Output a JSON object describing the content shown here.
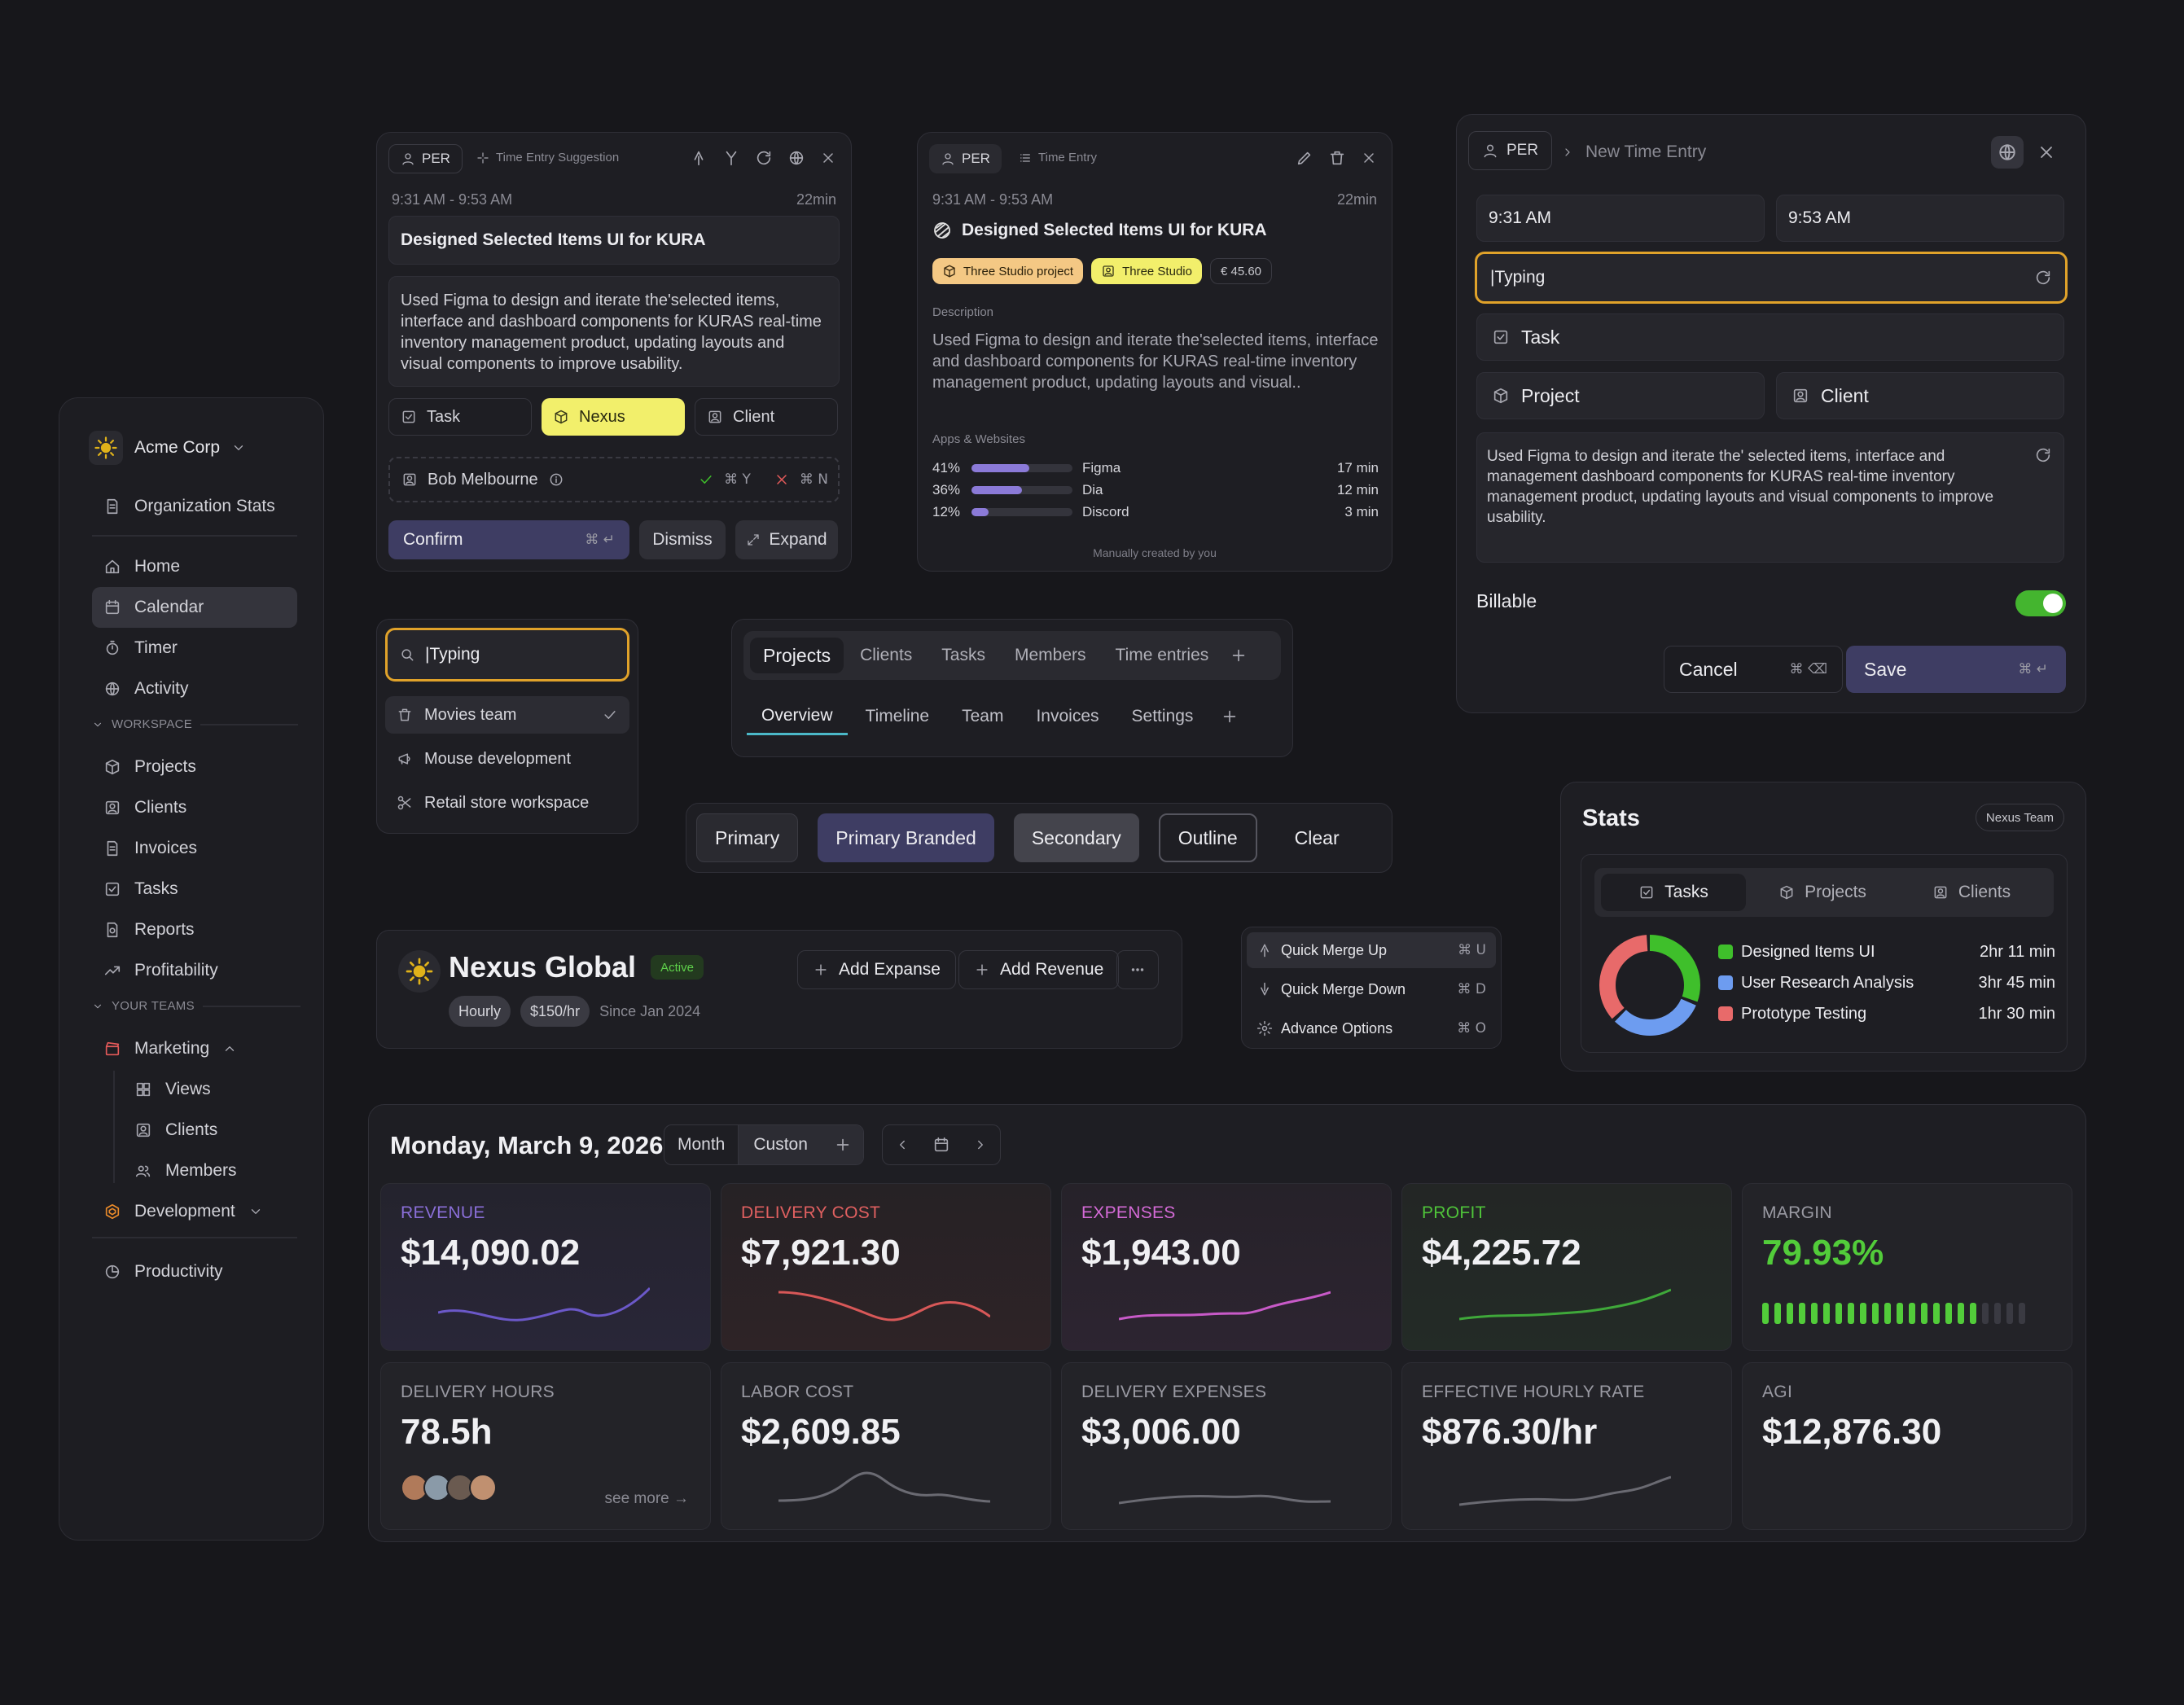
{
  "sidebar": {
    "org_name": "Acme Corp",
    "org_stats": "Organization Stats",
    "items": [
      {
        "label": "Home",
        "icon": "home-icon"
      },
      {
        "label": "Calendar",
        "icon": "calendar-icon"
      },
      {
        "label": "Timer",
        "icon": "timer-icon"
      },
      {
        "label": "Activity",
        "icon": "globe-icon"
      }
    ],
    "workspace_heading": "WORKSPACE",
    "workspace_items": [
      {
        "label": "Projects",
        "icon": "box-icon"
      },
      {
        "label": "Clients",
        "icon": "contact-icon"
      },
      {
        "label": "Invoices",
        "icon": "document-icon"
      },
      {
        "label": "Tasks",
        "icon": "checkbox-icon"
      },
      {
        "label": "Reports",
        "icon": "report-icon"
      },
      {
        "label": "Profitability",
        "icon": "trend-icon"
      }
    ],
    "teams_heading": "YOUR TEAMS",
    "team_marketing": "Marketing",
    "team_sub": [
      {
        "label": "Views",
        "icon": "grid-icon"
      },
      {
        "label": "Clients",
        "icon": "contact-icon"
      },
      {
        "label": "Members",
        "icon": "users-icon"
      }
    ],
    "team_development": "Development",
    "productivity": "Productivity"
  },
  "suggestion": {
    "per": "PER",
    "title": "Time Entry Suggestion",
    "time_range": "9:31 AM - 9:53 AM",
    "duration": "22min",
    "entry_title": "Designed Selected Items UI for KURA",
    "description": "Used Figma to design and iterate the'selected items, interface and dashboard components for KURAS real-time inventory management product, updating layouts and visual components to improve usability.",
    "task": "Task",
    "project": "Nexus",
    "client": "Client",
    "person": "Bob Melbourne",
    "accept_key": "Y",
    "reject_key": "N",
    "confirm": "Confirm",
    "dismiss": "Dismiss",
    "expand": "Expand"
  },
  "time_entry": {
    "per": "PER",
    "title": "Time Entry",
    "time_range": "9:31 AM - 9:53 AM",
    "duration": "22min",
    "entry_title": "Designed Selected Items UI for KURA",
    "project_tag": "Three Studio project",
    "client_tag": "Three Studio",
    "amount": "€ 45.60",
    "description_label": "Description",
    "description": "Used Figma to design and iterate the'selected items, interface and dashboard components for KURAS real-time inventory management product, updating layouts and visual..",
    "apps_label": "Apps & Websites",
    "apps": [
      {
        "pct": "41%",
        "fraction": 0.41,
        "name": "Figma",
        "time": "17 min"
      },
      {
        "pct": "36%",
        "fraction": 0.36,
        "name": "Dia",
        "time": "12 min"
      },
      {
        "pct": "12%",
        "fraction": 0.12,
        "name": "Discord",
        "time": "3 min"
      }
    ],
    "footer": "Manually created by you"
  },
  "new_entry": {
    "per": "PER",
    "breadcrumb": "New Time Entry",
    "start": "9:31 AM",
    "end": "9:53 AM",
    "typing": "|Typing",
    "task": "Task",
    "project": "Project",
    "client": "Client",
    "description": "Used Figma to design and iterate the' selected items, interface and management dashboard components for KURAS real-time inventory management product, updating layouts and visual components to improve usability.",
    "billable": "Billable",
    "cancel": "Cancel",
    "save": "Save"
  },
  "search": {
    "value": "|Typing",
    "options": [
      {
        "label": "Movies team",
        "icon": "trash-icon"
      },
      {
        "label": "Mouse development",
        "icon": "megaphone-icon"
      },
      {
        "label": "Retail store workspace",
        "icon": "scissors-icon"
      }
    ]
  },
  "tabs": {
    "primary": [
      "Projects",
      "Clients",
      "Tasks",
      "Members",
      "Time entries"
    ],
    "secondary": [
      "Overview",
      "Timeline",
      "Team",
      "Invoices",
      "Settings"
    ]
  },
  "buttons": [
    "Primary",
    "Primary Branded",
    "Secondary",
    "Outline",
    "Clear"
  ],
  "client_header": {
    "name": "Nexus Global",
    "status": "Active",
    "rate_type": "Hourly",
    "rate": "$150/hr",
    "since": "Since Jan 2024",
    "add_expense": "Add Expanse",
    "add_revenue": "Add Revenue"
  },
  "menu": [
    {
      "label": "Quick Merge Up",
      "key": "U"
    },
    {
      "label": "Quick Merge Down",
      "key": "D"
    },
    {
      "label": "Advance Options",
      "key": "O"
    }
  ],
  "stats": {
    "title": "Stats",
    "team": "Nexus Team",
    "tabs": [
      "Tasks",
      "Projects",
      "Clients"
    ],
    "legend": [
      {
        "label": "Designed Items UI",
        "time": "2hr 11 min",
        "color": "#3fbf2b"
      },
      {
        "label": "User Research Analysis",
        "time": "3hr 45 min",
        "color": "#6d9cf0"
      },
      {
        "label": "Prototype Testing",
        "time": "1hr 30 min",
        "color": "#e86a6a"
      }
    ]
  },
  "dashboard": {
    "date": "Monday, March 9, 2026",
    "view_month": "Month",
    "view_custom": "Custon",
    "metrics": [
      {
        "label": "REVENUE",
        "value": "$14,090.02",
        "color": "#8a6fd8"
      },
      {
        "label": "DELIVERY COST",
        "value": "$7,921.30",
        "color": "#e06060"
      },
      {
        "label": "EXPENSES",
        "value": "$1,943.00",
        "color": "#d46ad6"
      },
      {
        "label": "PROFIT",
        "value": "$4,225.72",
        "color": "#4fc43a"
      },
      {
        "label": "MARGIN",
        "value": "79.93%",
        "color": "#9a9aa3"
      },
      {
        "label": "DELIVERY HOURS",
        "value": "78.5h",
        "color": "#9a9aa3"
      },
      {
        "label": "LABOR COST",
        "value": "$2,609.85",
        "color": "#9a9aa3"
      },
      {
        "label": "DELIVERY EXPENSES",
        "value": "$3,006.00",
        "color": "#9a9aa3"
      },
      {
        "label": "EFFECTIVE HOURLY RATE",
        "value": "$876.30/hr",
        "color": "#9a9aa3"
      },
      {
        "label": "AGI",
        "value": "$12,876.30",
        "color": "#9a9aa3"
      }
    ],
    "margin_fraction": 0.7993,
    "see_more": "see more →"
  }
}
